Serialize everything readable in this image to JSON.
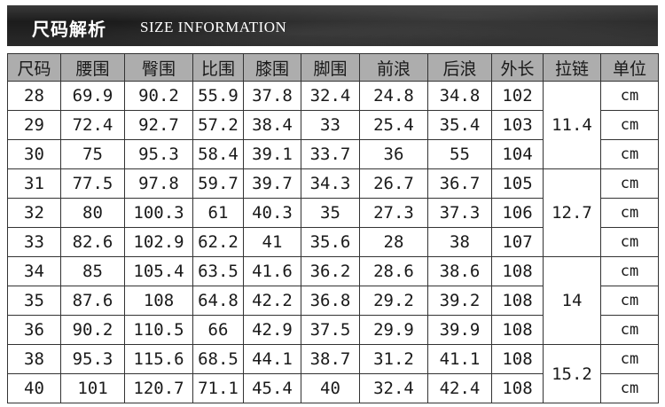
{
  "header": {
    "title_cn": "尺码解析",
    "title_en": "SIZE INFORMATION"
  },
  "table": {
    "columns": [
      "尺码",
      "腰围",
      "臀围",
      "比围",
      "膝围",
      "脚围",
      "前浪",
      "后浪",
      "外长",
      "拉链",
      "单位"
    ],
    "rows": [
      [
        "28",
        "69.9",
        "90.2",
        "55.9",
        "37.8",
        "32.4",
        "24.8",
        "34.8",
        "102"
      ],
      [
        "29",
        "72.4",
        "92.7",
        "57.2",
        "38.4",
        "33",
        "25.4",
        "35.4",
        "103"
      ],
      [
        "30",
        "75",
        "95.3",
        "58.4",
        "39.1",
        "33.7",
        "36",
        "55",
        "104"
      ],
      [
        "31",
        "77.5",
        "97.8",
        "59.7",
        "39.7",
        "34.3",
        "26.7",
        "36.7",
        "105"
      ],
      [
        "32",
        "80",
        "100.3",
        "61",
        "40.3",
        "35",
        "27.3",
        "37.3",
        "106"
      ],
      [
        "33",
        "82.6",
        "102.9",
        "62.2",
        "41",
        "35.6",
        "28",
        "38",
        "107"
      ],
      [
        "34",
        "85",
        "105.4",
        "63.5",
        "41.6",
        "36.2",
        "28.6",
        "38.6",
        "108"
      ],
      [
        "35",
        "87.6",
        "108",
        "64.8",
        "42.2",
        "36.8",
        "29.2",
        "39.2",
        "108"
      ],
      [
        "36",
        "90.2",
        "110.5",
        "66",
        "42.9",
        "37.5",
        "29.9",
        "39.9",
        "108"
      ],
      [
        "38",
        "95.3",
        "115.6",
        "68.5",
        "44.1",
        "38.7",
        "31.2",
        "41.1",
        "108"
      ],
      [
        "40",
        "101",
        "120.7",
        "71.1",
        "45.4",
        "40",
        "32.4",
        "42.4",
        "108"
      ]
    ],
    "zipper_groups": [
      {
        "value": "11.4",
        "rows": 3
      },
      {
        "value": "12.7",
        "rows": 3
      },
      {
        "value": "14",
        "rows": 3
      },
      {
        "value": "15.2",
        "rows": 2
      }
    ],
    "unit": "cm"
  }
}
